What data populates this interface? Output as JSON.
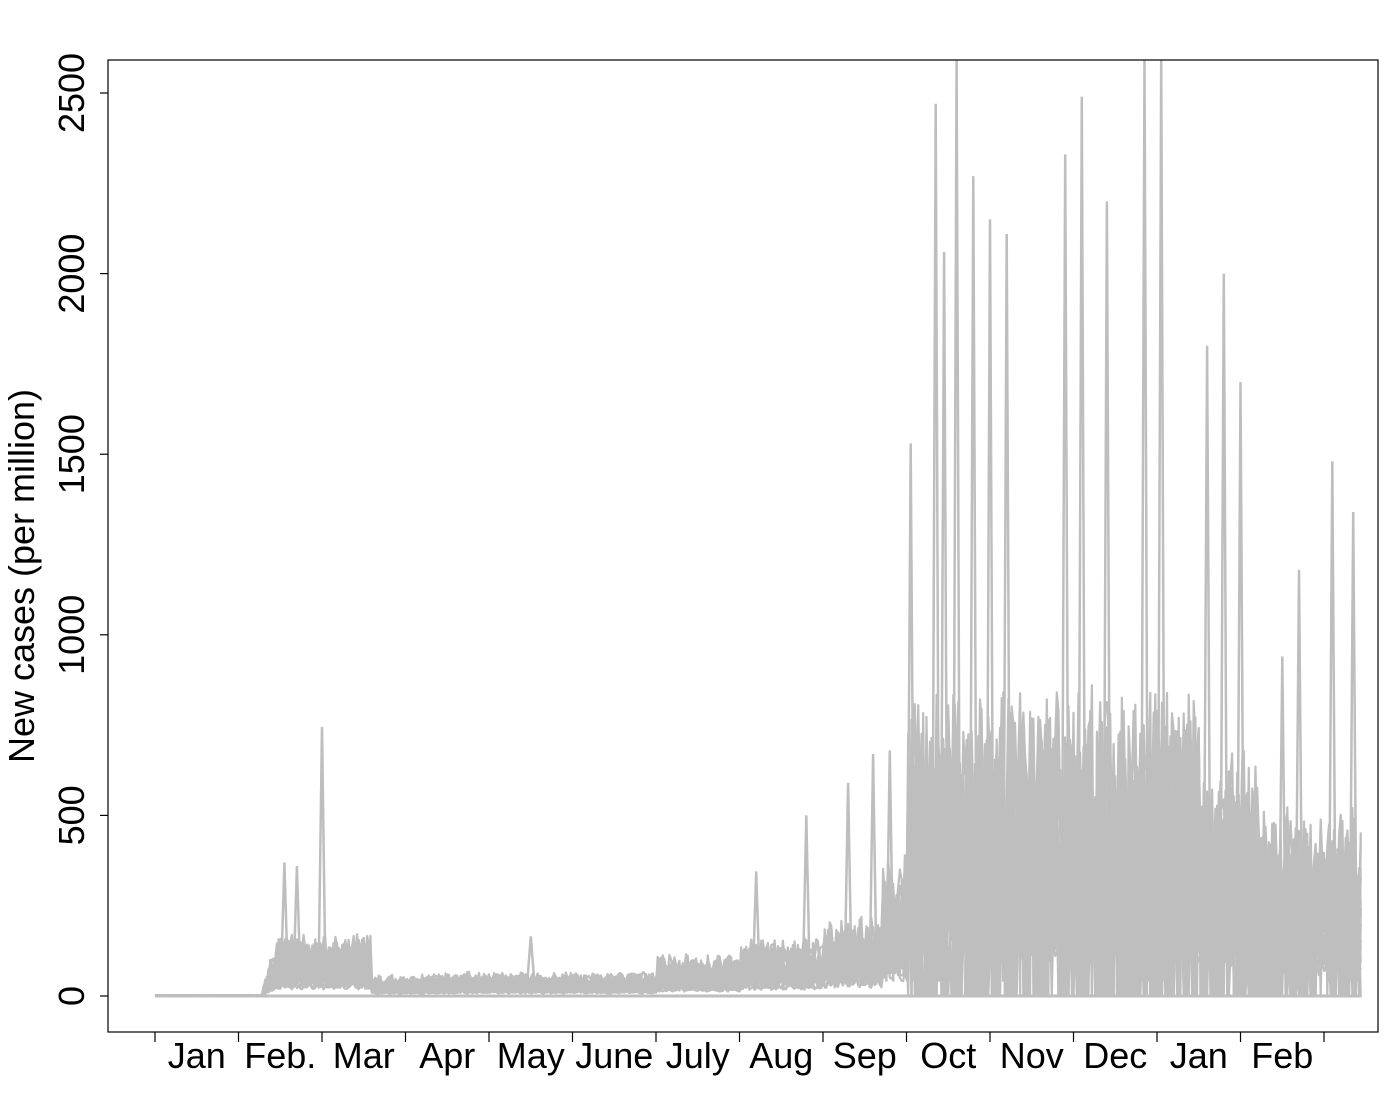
{
  "chart_data": {
    "type": "line",
    "title": "",
    "xlabel": "",
    "ylabel": "New cases (per million)",
    "ylim": [
      -100,
      2600
    ],
    "yticks": [
      0,
      500,
      1000,
      1500,
      2000,
      2500
    ],
    "xticks": [
      "Jan",
      "Feb.",
      "Mar",
      "Apr",
      "May",
      "June",
      "July",
      "Aug",
      "Sep",
      "Oct",
      "Nov",
      "Dec",
      "Jan",
      "Feb"
    ],
    "x_unit": "month",
    "line_color": "#bebebe",
    "grid": false,
    "legend": "none",
    "series_note": "many overlapping grey country series",
    "peaks": [
      {
        "x": 2.0,
        "y": 745
      },
      {
        "x": 1.55,
        "y": 370
      },
      {
        "x": 1.7,
        "y": 360
      },
      {
        "x": 4.5,
        "y": 165
      },
      {
        "x": 7.2,
        "y": 345
      },
      {
        "x": 7.8,
        "y": 500
      },
      {
        "x": 8.3,
        "y": 590
      },
      {
        "x": 8.6,
        "y": 670
      },
      {
        "x": 8.8,
        "y": 680
      },
      {
        "x": 9.05,
        "y": 1530
      },
      {
        "x": 9.35,
        "y": 2470
      },
      {
        "x": 9.45,
        "y": 2060
      },
      {
        "x": 9.6,
        "y": 2600
      },
      {
        "x": 9.8,
        "y": 2270
      },
      {
        "x": 10.0,
        "y": 2150
      },
      {
        "x": 10.2,
        "y": 2110
      },
      {
        "x": 10.9,
        "y": 2330
      },
      {
        "x": 11.1,
        "y": 2490
      },
      {
        "x": 11.4,
        "y": 2200
      },
      {
        "x": 11.85,
        "y": 2600
      },
      {
        "x": 12.05,
        "y": 2600
      },
      {
        "x": 12.6,
        "y": 1800
      },
      {
        "x": 12.8,
        "y": 2000
      },
      {
        "x": 13.0,
        "y": 1700
      },
      {
        "x": 13.5,
        "y": 940
      },
      {
        "x": 13.7,
        "y": 1180
      },
      {
        "x": 14.1,
        "y": 1480
      },
      {
        "x": 14.35,
        "y": 1340
      }
    ]
  }
}
